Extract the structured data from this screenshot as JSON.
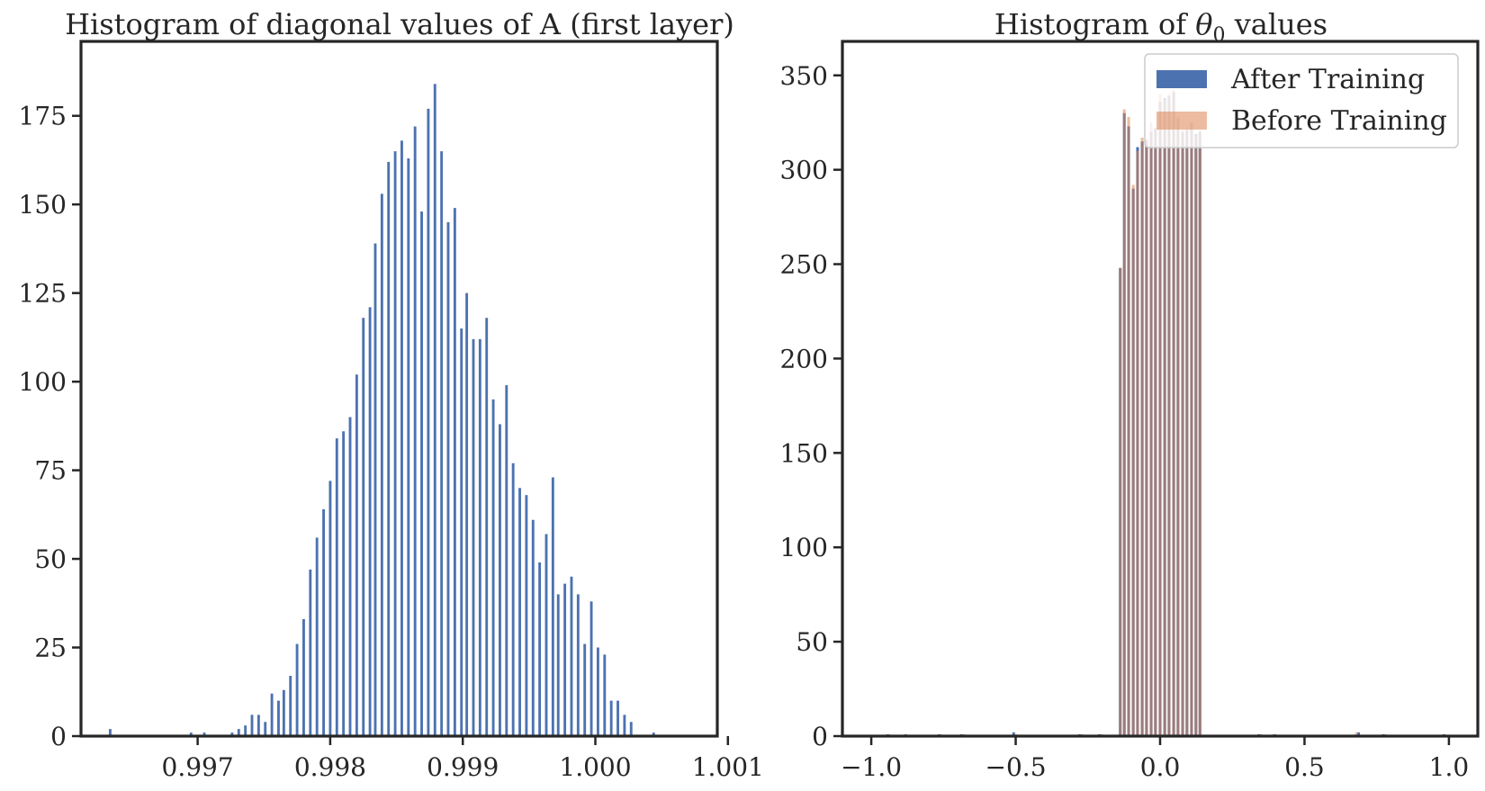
{
  "chart_data": [
    {
      "type": "bar",
      "title": "Histogram of diagonal values of A (first layer)",
      "xlabel": "",
      "ylabel": "",
      "xlim": [
        0.99612,
        1.00092
      ],
      "ylim": [
        0,
        196
      ],
      "xticks": [
        0.997,
        0.998,
        0.999,
        1.0,
        1.001
      ],
      "xtick_labels": [
        "0.997",
        "0.998",
        "0.999",
        "1.000",
        "1.001"
      ],
      "yticks": [
        0,
        25,
        50,
        75,
        100,
        125,
        150,
        175
      ],
      "ytick_labels": [
        "0",
        "25",
        "50",
        "75",
        "100",
        "125",
        "150",
        "175"
      ],
      "grid": false,
      "color": "#4c72b0",
      "bar_width": 1.95e-05,
      "x": [
        0.99634,
        0.99695,
        0.99705,
        0.99726,
        0.99731,
        0.99736,
        0.99741,
        0.99746,
        0.99751,
        0.99756,
        0.99761,
        0.99765,
        0.9977,
        0.99775,
        0.9978,
        0.99785,
        0.9979,
        0.99795,
        0.998,
        0.99805,
        0.9981,
        0.99815,
        0.9982,
        0.99825,
        0.9983,
        0.99834,
        0.99839,
        0.99844,
        0.99849,
        0.99854,
        0.99859,
        0.99864,
        0.99869,
        0.99874,
        0.99879,
        0.99884,
        0.99889,
        0.99894,
        0.99899,
        0.99903,
        0.99908,
        0.99913,
        0.99918,
        0.99923,
        0.99928,
        0.99933,
        0.99938,
        0.99943,
        0.99948,
        0.99953,
        0.99958,
        0.99963,
        0.99968,
        0.99972,
        0.99977,
        0.99982,
        0.99987,
        0.99992,
        0.99997,
        1.00002,
        1.00007,
        1.00012,
        1.00017,
        1.00022,
        1.00027,
        1.00044
      ],
      "values": [
        2,
        1,
        1,
        1,
        2,
        3,
        6,
        6,
        4,
        12,
        10,
        13,
        17,
        26,
        33,
        47,
        56,
        64,
        72,
        84,
        86,
        90,
        102,
        118,
        121,
        139,
        153,
        162,
        165,
        168,
        163,
        172,
        148,
        177,
        184,
        165,
        145,
        149,
        115,
        125,
        112,
        112,
        118,
        95,
        88,
        99,
        77,
        70,
        68,
        61,
        49,
        57,
        73,
        40,
        43,
        45,
        40,
        26,
        38,
        25,
        23,
        10,
        10,
        6,
        4,
        1
      ]
    },
    {
      "type": "bar",
      "title": "Histogram of θ₀ values",
      "xlabel": "",
      "ylabel": "",
      "xlim": [
        -1.1,
        1.1
      ],
      "ylim": [
        0,
        368
      ],
      "xticks": [
        -1.0,
        -0.5,
        0.0,
        0.5,
        1.0
      ],
      "xtick_labels": [
        "−1.0",
        "−0.5",
        "0.0",
        "0.5",
        "1.0"
      ],
      "yticks": [
        0,
        50,
        100,
        150,
        200,
        250,
        300,
        350
      ],
      "ytick_labels": [
        "0",
        "50",
        "100",
        "150",
        "200",
        "250",
        "300",
        "350"
      ],
      "grid": false,
      "legend_position": "top-right",
      "bar_width": 0.0095,
      "series": [
        {
          "name": "After Training",
          "color": "#4c72b0",
          "opacity": 1,
          "x": [
            -0.943,
            -0.882,
            -0.765,
            -0.688,
            -0.507,
            -0.279,
            -0.21,
            -0.138,
            -0.124,
            -0.109,
            -0.093,
            -0.078,
            -0.062,
            -0.047,
            -0.031,
            -0.016,
            0.0,
            0.016,
            0.031,
            0.047,
            0.062,
            0.078,
            0.093,
            0.109,
            0.124,
            0.138,
            0.342,
            0.396,
            0.687,
            0.773,
            0.983
          ],
          "values": [
            1,
            1,
            1,
            1,
            2,
            1,
            1,
            248,
            330,
            323,
            290,
            312,
            315,
            316,
            320,
            322,
            336,
            338,
            339,
            341,
            327,
            320,
            321,
            325,
            319,
            320,
            1,
            1,
            2,
            1,
            1
          ]
        },
        {
          "name": "Before Training",
          "color": "#dd8452",
          "opacity": 0.55,
          "x": [
            -0.94,
            -0.88,
            -0.76,
            -0.68,
            -0.5,
            -0.27,
            -0.2,
            -0.138,
            -0.124,
            -0.109,
            -0.093,
            -0.078,
            -0.062,
            -0.047,
            -0.031,
            -0.016,
            0.0,
            0.016,
            0.031,
            0.047,
            0.062,
            0.078,
            0.093,
            0.109,
            0.124,
            0.138,
            0.35,
            0.4,
            0.68,
            0.78,
            0.98
          ],
          "values": [
            1,
            1,
            1,
            1,
            1,
            1,
            1,
            248,
            332,
            328,
            292,
            310,
            317,
            316,
            325,
            322,
            340,
            337,
            340,
            342,
            328,
            321,
            322,
            325,
            318,
            321,
            1,
            1,
            2,
            1,
            1
          ]
        }
      ]
    }
  ]
}
